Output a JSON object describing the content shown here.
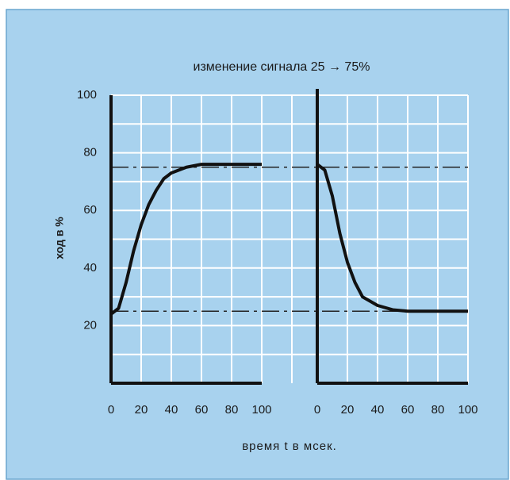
{
  "chart_data": {
    "type": "line",
    "title": "изменение сигнала 25 → 75%",
    "y_label": "ход в %",
    "x_label": "время t в мсек.",
    "ylim": [
      0,
      100
    ],
    "yticks": [
      20,
      40,
      60,
      80,
      100
    ],
    "minor_yticks": [
      10,
      30,
      50,
      70,
      90
    ],
    "grid": true,
    "color": "#111111",
    "reference_lines": [
      75,
      25
    ],
    "panels": [
      {
        "xlim": [
          0,
          100
        ],
        "xticks": [
          0,
          20,
          40,
          60,
          80,
          100
        ],
        "x": [
          0,
          5,
          10,
          15,
          20,
          25,
          30,
          35,
          40,
          50,
          60,
          70,
          100
        ],
        "values": [
          24,
          26,
          35,
          46,
          55,
          62,
          67,
          71,
          73,
          75,
          76,
          76,
          76
        ]
      },
      {
        "xlim": [
          0,
          100
        ],
        "xticks": [
          0,
          20,
          40,
          60,
          80,
          100
        ],
        "x": [
          0,
          5,
          10,
          15,
          20,
          25,
          30,
          40,
          50,
          60,
          100
        ],
        "values": [
          76,
          74,
          65,
          52,
          42,
          35,
          30,
          27,
          25.5,
          25,
          25
        ]
      }
    ]
  }
}
